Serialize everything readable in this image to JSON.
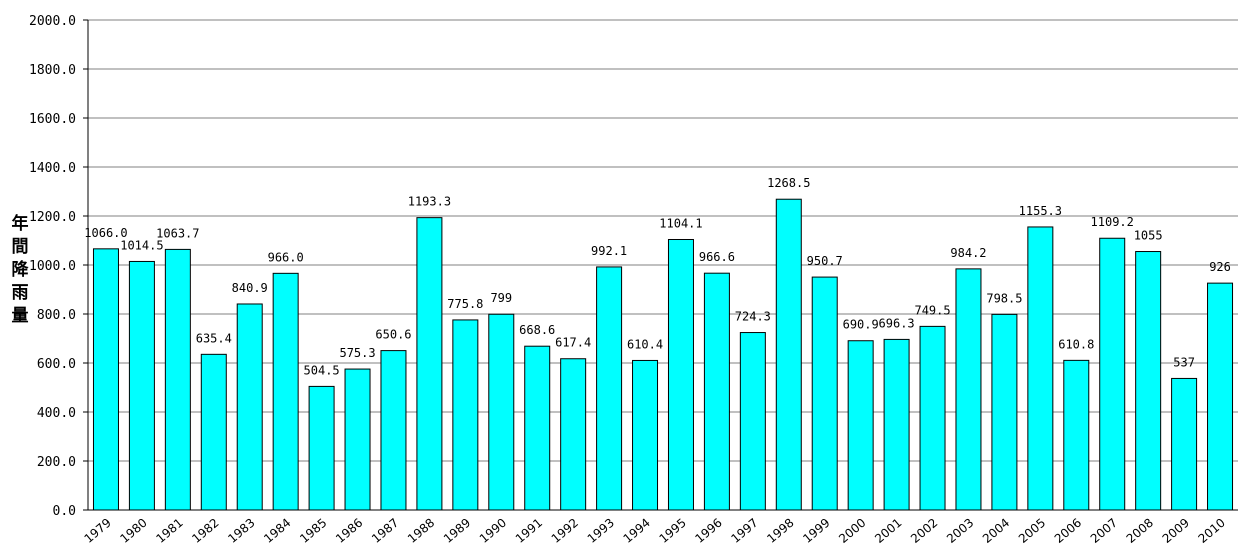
{
  "chart_data": {
    "type": "bar",
    "ylabel": "年間降雨量",
    "ylim": [
      0,
      2000
    ],
    "ytick_step": 200,
    "ytick_labels": [
      "0.0",
      "200.0",
      "400.0",
      "600.0",
      "800.0",
      "1000.0",
      "1200.0",
      "1400.0",
      "1600.0",
      "1800.0",
      "2000.0"
    ],
    "grid": true,
    "legend": "none",
    "bar_color": "#00FFFF",
    "bar_edge_color": "#000000",
    "categories": [
      "1979",
      "1980",
      "1981",
      "1982",
      "1983",
      "1984",
      "1985",
      "1986",
      "1987",
      "1988",
      "1989",
      "1990",
      "1991",
      "1992",
      "1993",
      "1994",
      "1995",
      "1996",
      "1997",
      "1998",
      "1999",
      "2000",
      "2001",
      "2002",
      "2003",
      "2004",
      "2005",
      "2006",
      "2007",
      "2008",
      "2009",
      "2010"
    ],
    "values": [
      1066.0,
      1014.5,
      1063.7,
      635.4,
      840.9,
      966.0,
      504.5,
      575.3,
      650.6,
      1193.3,
      775.8,
      799,
      668.6,
      617.4,
      992.1,
      610.4,
      1104.1,
      966.6,
      724.3,
      1268.5,
      950.7,
      690.9,
      696.3,
      749.5,
      984.2,
      798.5,
      1155.3,
      610.8,
      1109.2,
      1055,
      537,
      926
    ],
    "data_labels": [
      "1066.0",
      "1014.5",
      "1063.7",
      "635.4",
      "840.9",
      "966.0",
      "504.5",
      "575.3",
      "650.6",
      "1193.3",
      "775.8",
      "799",
      "668.6",
      "617.4",
      "992.1",
      "610.4",
      "1104.1",
      "966.6",
      "724.3",
      "1268.5",
      "950.7",
      "690.9",
      "696.3",
      "749.5",
      "984.2",
      "798.5",
      "1155.3",
      "610.8",
      "1109.2",
      "1055",
      "537",
      "926"
    ]
  }
}
